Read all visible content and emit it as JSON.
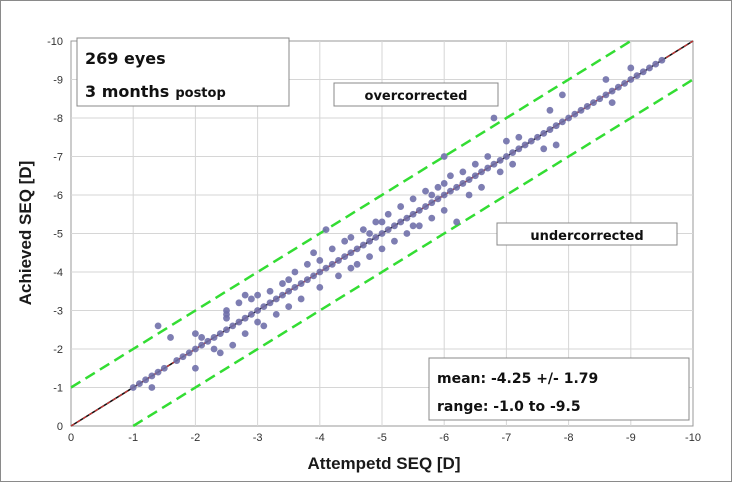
{
  "chart_data": {
    "type": "scatter",
    "xlabel": "Attempetd SEQ [D]",
    "ylabel": "Achieved SEQ [D]",
    "xlim": [
      0,
      -10
    ],
    "ylim": [
      0,
      -10
    ],
    "x_ticks": [
      "0",
      "-1",
      "-2",
      "-3",
      "-4",
      "-5",
      "-6",
      "-7",
      "-8",
      "-9",
      "-10"
    ],
    "y_ticks": [
      "0",
      "-1",
      "-2",
      "-3",
      "-4",
      "-5",
      "-6",
      "-7",
      "-8",
      "-9",
      "-10"
    ],
    "grid": true,
    "reference_line": {
      "slope": 1,
      "intercept": 0,
      "color": "#111111"
    },
    "fit_line": {
      "slope": 1,
      "intercept": 0,
      "color": "#cc3333"
    },
    "bounds": [
      {
        "slope": 1,
        "intercept": 1,
        "color": "#33dd33"
      },
      {
        "slope": 1,
        "intercept": -1,
        "color": "#33dd33"
      }
    ],
    "point_color": "#7070aa",
    "points": [
      [
        -1.0,
        -1.0
      ],
      [
        -1.1,
        -1.1
      ],
      [
        -1.2,
        -1.2
      ],
      [
        -1.3,
        -1.3
      ],
      [
        -1.3,
        -1.0
      ],
      [
        -1.4,
        -1.4
      ],
      [
        -1.5,
        -1.5
      ],
      [
        -1.4,
        -2.6
      ],
      [
        -1.6,
        -2.3
      ],
      [
        -1.7,
        -1.7
      ],
      [
        -1.8,
        -1.8
      ],
      [
        -1.9,
        -1.9
      ],
      [
        -2.0,
        -2.0
      ],
      [
        -2.0,
        -1.5
      ],
      [
        -2.1,
        -2.1
      ],
      [
        -2.1,
        -2.3
      ],
      [
        -2.2,
        -2.2
      ],
      [
        -2.3,
        -2.3
      ],
      [
        -2.3,
        -2.0
      ],
      [
        -2.4,
        -2.4
      ],
      [
        -2.4,
        -1.9
      ],
      [
        -2.5,
        -2.5
      ],
      [
        -2.5,
        -3.0
      ],
      [
        -2.5,
        -2.8
      ],
      [
        -2.6,
        -2.6
      ],
      [
        -2.6,
        -2.1
      ],
      [
        -2.7,
        -2.7
      ],
      [
        -2.7,
        -3.2
      ],
      [
        -2.8,
        -2.8
      ],
      [
        -2.8,
        -2.4
      ],
      [
        -2.8,
        -3.4
      ],
      [
        -2.9,
        -2.9
      ],
      [
        -2.9,
        -3.3
      ],
      [
        -3.0,
        -3.0
      ],
      [
        -3.0,
        -2.7
      ],
      [
        -3.1,
        -3.1
      ],
      [
        -3.1,
        -2.6
      ],
      [
        -3.2,
        -3.2
      ],
      [
        -3.2,
        -3.5
      ],
      [
        -3.3,
        -3.3
      ],
      [
        -3.3,
        -2.9
      ],
      [
        -3.4,
        -3.4
      ],
      [
        -3.4,
        -3.7
      ],
      [
        -3.5,
        -3.5
      ],
      [
        -3.5,
        -3.1
      ],
      [
        -3.6,
        -3.6
      ],
      [
        -3.6,
        -4.0
      ],
      [
        -3.7,
        -3.7
      ],
      [
        -3.7,
        -3.3
      ],
      [
        -3.8,
        -3.8
      ],
      [
        -3.8,
        -4.2
      ],
      [
        -3.9,
        -3.9
      ],
      [
        -3.9,
        -4.5
      ],
      [
        -4.0,
        -4.0
      ],
      [
        -4.0,
        -3.6
      ],
      [
        -4.1,
        -4.1
      ],
      [
        -4.1,
        -5.1
      ],
      [
        -4.2,
        -4.2
      ],
      [
        -4.2,
        -4.6
      ],
      [
        -4.3,
        -4.3
      ],
      [
        -4.3,
        -3.9
      ],
      [
        -4.4,
        -4.4
      ],
      [
        -4.4,
        -4.8
      ],
      [
        -4.5,
        -4.5
      ],
      [
        -4.5,
        -4.1
      ],
      [
        -4.5,
        -4.9
      ],
      [
        -4.6,
        -4.6
      ],
      [
        -4.6,
        -4.2
      ],
      [
        -4.7,
        -4.7
      ],
      [
        -4.7,
        -5.1
      ],
      [
        -4.8,
        -4.8
      ],
      [
        -4.8,
        -4.4
      ],
      [
        -4.9,
        -4.9
      ],
      [
        -4.9,
        -5.3
      ],
      [
        -5.0,
        -5.0
      ],
      [
        -5.0,
        -4.6
      ],
      [
        -5.1,
        -5.1
      ],
      [
        -5.1,
        -5.5
      ],
      [
        -5.2,
        -5.2
      ],
      [
        -5.2,
        -4.8
      ],
      [
        -5.3,
        -5.3
      ],
      [
        -5.3,
        -5.7
      ],
      [
        -5.4,
        -5.4
      ],
      [
        -5.4,
        -5.0
      ],
      [
        -5.5,
        -5.5
      ],
      [
        -5.5,
        -5.9
      ],
      [
        -5.6,
        -5.6
      ],
      [
        -5.6,
        -5.2
      ],
      [
        -5.7,
        -5.7
      ],
      [
        -5.7,
        -6.1
      ],
      [
        -5.8,
        -5.8
      ],
      [
        -5.8,
        -5.4
      ],
      [
        -5.9,
        -5.9
      ],
      [
        -5.9,
        -6.2
      ],
      [
        -6.0,
        -6.0
      ],
      [
        -6.0,
        -7.0
      ],
      [
        -6.0,
        -5.6
      ],
      [
        -6.1,
        -6.1
      ],
      [
        -6.1,
        -6.5
      ],
      [
        -6.2,
        -6.2
      ],
      [
        -6.2,
        -5.3
      ],
      [
        -6.3,
        -6.3
      ],
      [
        -6.3,
        -6.6
      ],
      [
        -6.4,
        -6.4
      ],
      [
        -6.4,
        -6.0
      ],
      [
        -6.5,
        -6.5
      ],
      [
        -6.5,
        -6.8
      ],
      [
        -6.6,
        -6.6
      ],
      [
        -6.6,
        -6.2
      ],
      [
        -6.7,
        -6.7
      ],
      [
        -6.7,
        -7.0
      ],
      [
        -6.8,
        -6.8
      ],
      [
        -6.8,
        -8.0
      ],
      [
        -6.9,
        -6.9
      ],
      [
        -6.9,
        -6.6
      ],
      [
        -7.0,
        -7.0
      ],
      [
        -7.0,
        -7.4
      ],
      [
        -7.1,
        -7.1
      ],
      [
        -7.1,
        -6.8
      ],
      [
        -7.2,
        -7.2
      ],
      [
        -7.2,
        -7.5
      ],
      [
        -7.3,
        -7.3
      ],
      [
        -7.4,
        -7.4
      ],
      [
        -7.5,
        -7.5
      ],
      [
        -7.6,
        -7.6
      ],
      [
        -7.6,
        -7.2
      ],
      [
        -7.7,
        -7.7
      ],
      [
        -7.7,
        -8.2
      ],
      [
        -7.8,
        -7.8
      ],
      [
        -7.8,
        -7.3
      ],
      [
        -7.9,
        -7.9
      ],
      [
        -7.9,
        -8.6
      ],
      [
        -8.0,
        -8.0
      ],
      [
        -8.1,
        -8.1
      ],
      [
        -8.2,
        -8.2
      ],
      [
        -8.3,
        -8.3
      ],
      [
        -8.4,
        -8.4
      ],
      [
        -8.5,
        -8.5
      ],
      [
        -8.6,
        -8.6
      ],
      [
        -8.6,
        -9.0
      ],
      [
        -8.7,
        -8.7
      ],
      [
        -8.7,
        -8.4
      ],
      [
        -8.8,
        -8.8
      ],
      [
        -8.9,
        -8.9
      ],
      [
        -9.0,
        -9.0
      ],
      [
        -9.0,
        -9.3
      ],
      [
        -9.1,
        -9.1
      ],
      [
        -9.2,
        -9.2
      ],
      [
        -9.3,
        -9.3
      ],
      [
        -9.4,
        -9.4
      ],
      [
        -9.5,
        -9.5
      ],
      [
        -2.5,
        -2.9
      ],
      [
        -3.0,
        -3.4
      ],
      [
        -4.0,
        -4.3
      ],
      [
        -5.0,
        -5.3
      ],
      [
        -5.5,
        -5.2
      ],
      [
        -6.0,
        -6.3
      ],
      [
        -3.5,
        -3.8
      ],
      [
        -2.0,
        -2.4
      ],
      [
        -4.8,
        -5.0
      ],
      [
        -5.8,
        -6.0
      ]
    ]
  },
  "annotations": {
    "count": "269 eyes",
    "months": "3 months",
    "postop": "postop",
    "overcorrected": "overcorrected",
    "undercorrected": "undercorrected",
    "mean": "mean: -4.25 +/- 1.79",
    "range": "range: -1.0 to -9.5"
  }
}
